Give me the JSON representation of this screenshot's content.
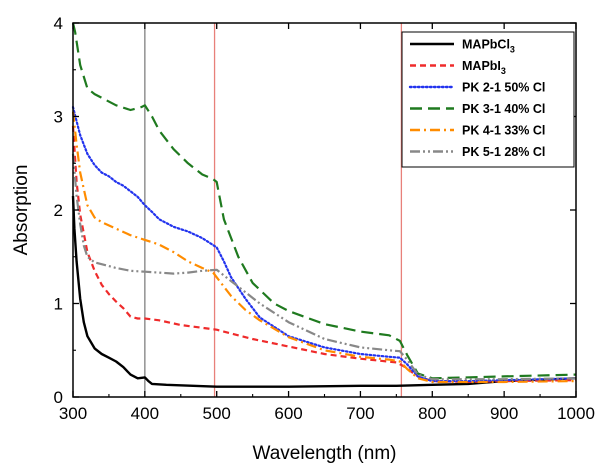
{
  "chart_data": {
    "type": "line",
    "xlabel": "Wavelength (nm)",
    "ylabel": "Absorption",
    "xlim": [
      300,
      1000
    ],
    "ylim": [
      0,
      4
    ],
    "xticks": [
      "300",
      "400",
      "500",
      "600",
      "700",
      "800",
      "900",
      "1000"
    ],
    "yticks": [
      "0",
      "1",
      "2",
      "3",
      "4"
    ],
    "grid": false,
    "legend_position": "top-right",
    "vertical_lines": [
      {
        "x": 400,
        "color": "#808080"
      },
      {
        "x": 497,
        "color": "#e8807a"
      },
      {
        "x": 757,
        "color": "#e8807a"
      }
    ],
    "series": [
      {
        "name": "MAPbCl",
        "name_sub": "3",
        "color": "#000000",
        "dash": "solid",
        "points": [
          [
            300,
            2.15
          ],
          [
            302,
            1.8
          ],
          [
            305,
            1.45
          ],
          [
            310,
            1.05
          ],
          [
            315,
            0.8
          ],
          [
            320,
            0.65
          ],
          [
            330,
            0.52
          ],
          [
            340,
            0.46
          ],
          [
            350,
            0.42
          ],
          [
            360,
            0.38
          ],
          [
            370,
            0.32
          ],
          [
            380,
            0.24
          ],
          [
            390,
            0.2
          ],
          [
            400,
            0.21
          ],
          [
            405,
            0.17
          ],
          [
            410,
            0.14
          ],
          [
            430,
            0.13
          ],
          [
            500,
            0.11
          ],
          [
            600,
            0.11
          ],
          [
            700,
            0.12
          ],
          [
            750,
            0.12
          ],
          [
            800,
            0.13
          ],
          [
            850,
            0.14
          ],
          [
            900,
            0.17
          ],
          [
            1000,
            0.2
          ]
        ]
      },
      {
        "name": "MAPbI",
        "name_sub": "3",
        "color": "#ef2b2b",
        "dash": "dash-short",
        "points": [
          [
            300,
            2.9
          ],
          [
            305,
            2.3
          ],
          [
            310,
            1.95
          ],
          [
            320,
            1.55
          ],
          [
            330,
            1.35
          ],
          [
            340,
            1.2
          ],
          [
            350,
            1.1
          ],
          [
            360,
            1.02
          ],
          [
            370,
            0.95
          ],
          [
            380,
            0.86
          ],
          [
            390,
            0.84
          ],
          [
            400,
            0.84
          ],
          [
            420,
            0.82
          ],
          [
            450,
            0.77
          ],
          [
            500,
            0.72
          ],
          [
            550,
            0.62
          ],
          [
            600,
            0.54
          ],
          [
            650,
            0.46
          ],
          [
            700,
            0.41
          ],
          [
            750,
            0.37
          ],
          [
            760,
            0.33
          ],
          [
            780,
            0.22
          ],
          [
            800,
            0.17
          ],
          [
            850,
            0.16
          ],
          [
            900,
            0.17
          ],
          [
            1000,
            0.18
          ]
        ]
      },
      {
        "name": "PK 2-1 50% Cl",
        "color": "#2233ee",
        "dash": "dot",
        "points": [
          [
            300,
            3.1
          ],
          [
            305,
            2.95
          ],
          [
            310,
            2.8
          ],
          [
            320,
            2.6
          ],
          [
            330,
            2.48
          ],
          [
            340,
            2.4
          ],
          [
            350,
            2.36
          ],
          [
            360,
            2.3
          ],
          [
            370,
            2.26
          ],
          [
            380,
            2.2
          ],
          [
            390,
            2.14
          ],
          [
            400,
            2.05
          ],
          [
            410,
            1.98
          ],
          [
            420,
            1.9
          ],
          [
            440,
            1.82
          ],
          [
            460,
            1.77
          ],
          [
            480,
            1.7
          ],
          [
            500,
            1.6
          ],
          [
            510,
            1.45
          ],
          [
            520,
            1.28
          ],
          [
            540,
            1.05
          ],
          [
            560,
            0.85
          ],
          [
            600,
            0.65
          ],
          [
            650,
            0.53
          ],
          [
            700,
            0.46
          ],
          [
            740,
            0.43
          ],
          [
            755,
            0.42
          ],
          [
            765,
            0.35
          ],
          [
            780,
            0.22
          ],
          [
            800,
            0.17
          ],
          [
            850,
            0.17
          ],
          [
            900,
            0.18
          ],
          [
            1000,
            0.2
          ]
        ]
      },
      {
        "name": "PK 3-1 40% Cl",
        "color": "#1f7a1f",
        "dash": "dash-long",
        "points": [
          [
            300,
            4.0
          ],
          [
            303,
            3.9
          ],
          [
            310,
            3.55
          ],
          [
            320,
            3.3
          ],
          [
            330,
            3.24
          ],
          [
            340,
            3.2
          ],
          [
            360,
            3.12
          ],
          [
            380,
            3.07
          ],
          [
            395,
            3.1
          ],
          [
            400,
            3.12
          ],
          [
            410,
            3.0
          ],
          [
            420,
            2.85
          ],
          [
            440,
            2.65
          ],
          [
            460,
            2.5
          ],
          [
            480,
            2.38
          ],
          [
            495,
            2.33
          ],
          [
            500,
            2.3
          ],
          [
            510,
            1.9
          ],
          [
            530,
            1.5
          ],
          [
            550,
            1.22
          ],
          [
            580,
            1.0
          ],
          [
            600,
            0.92
          ],
          [
            650,
            0.78
          ],
          [
            700,
            0.7
          ],
          [
            740,
            0.66
          ],
          [
            755,
            0.6
          ],
          [
            765,
            0.45
          ],
          [
            780,
            0.25
          ],
          [
            800,
            0.2
          ],
          [
            900,
            0.22
          ],
          [
            1000,
            0.24
          ]
        ]
      },
      {
        "name": "PK 4-1 33% Cl",
        "color": "#ff8c00",
        "dash": "dashdot",
        "points": [
          [
            300,
            3.05
          ],
          [
            305,
            2.7
          ],
          [
            310,
            2.4
          ],
          [
            320,
            2.05
          ],
          [
            330,
            1.92
          ],
          [
            340,
            1.87
          ],
          [
            360,
            1.8
          ],
          [
            380,
            1.73
          ],
          [
            400,
            1.68
          ],
          [
            420,
            1.63
          ],
          [
            440,
            1.55
          ],
          [
            460,
            1.45
          ],
          [
            480,
            1.38
          ],
          [
            495,
            1.33
          ],
          [
            500,
            1.28
          ],
          [
            520,
            1.08
          ],
          [
            540,
            0.93
          ],
          [
            560,
            0.82
          ],
          [
            600,
            0.64
          ],
          [
            650,
            0.5
          ],
          [
            700,
            0.43
          ],
          [
            740,
            0.4
          ],
          [
            755,
            0.38
          ],
          [
            765,
            0.3
          ],
          [
            780,
            0.2
          ],
          [
            800,
            0.16
          ],
          [
            900,
            0.16
          ],
          [
            1000,
            0.17
          ]
        ]
      },
      {
        "name": "PK 5-1 28% Cl",
        "color": "#888888",
        "dash": "dashdotdot",
        "points": [
          [
            300,
            2.6
          ],
          [
            305,
            2.15
          ],
          [
            310,
            1.85
          ],
          [
            315,
            1.62
          ],
          [
            320,
            1.5
          ],
          [
            330,
            1.44
          ],
          [
            340,
            1.42
          ],
          [
            360,
            1.38
          ],
          [
            380,
            1.35
          ],
          [
            400,
            1.34
          ],
          [
            420,
            1.33
          ],
          [
            440,
            1.32
          ],
          [
            460,
            1.33
          ],
          [
            480,
            1.35
          ],
          [
            500,
            1.36
          ],
          [
            520,
            1.24
          ],
          [
            540,
            1.12
          ],
          [
            560,
            1.0
          ],
          [
            600,
            0.8
          ],
          [
            650,
            0.62
          ],
          [
            700,
            0.53
          ],
          [
            740,
            0.5
          ],
          [
            755,
            0.49
          ],
          [
            765,
            0.4
          ],
          [
            780,
            0.24
          ],
          [
            800,
            0.19
          ],
          [
            900,
            0.19
          ],
          [
            1000,
            0.2
          ]
        ]
      }
    ]
  }
}
